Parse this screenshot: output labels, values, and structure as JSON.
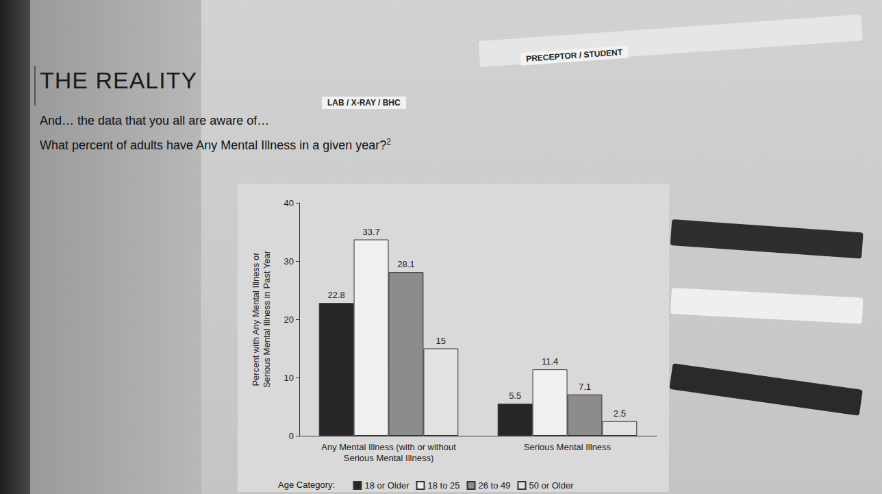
{
  "slide": {
    "title": "THE REALITY",
    "lines": [
      "And… the data that you all are aware of…"
    ],
    "question": "What percent of adults have Any Mental Illness in a given year?",
    "question_ref": "2",
    "photo_labels": [
      "LAB / X-RAY / BHC",
      "PRECEPTOR / STUDENT"
    ]
  },
  "chart_data": {
    "type": "bar",
    "categories": [
      "Any Mental Illness (with or without Serious Mental Illness)",
      "Serious Mental Illness"
    ],
    "series": [
      {
        "name": "18 or Older",
        "color": "#262626",
        "values": [
          22.8,
          5.5
        ]
      },
      {
        "name": "18 to 25",
        "color": "#f0f0f0",
        "values": [
          33.7,
          11.4
        ]
      },
      {
        "name": "26 to 49",
        "color": "#8c8c8c",
        "values": [
          28.1,
          7.1
        ]
      },
      {
        "name": "50 or Older",
        "color": "#e2e2e2",
        "values": [
          15.0,
          2.5
        ]
      }
    ],
    "ylabel": "Percent with Any Mental Illness or Serious Mental Illness in Past Year",
    "legend_title": "Age Category:",
    "ylim": [
      0,
      40
    ],
    "yticks": [
      0,
      10,
      20,
      30,
      40
    ],
    "grid": false,
    "legend": "bottom",
    "data_labels": true
  }
}
